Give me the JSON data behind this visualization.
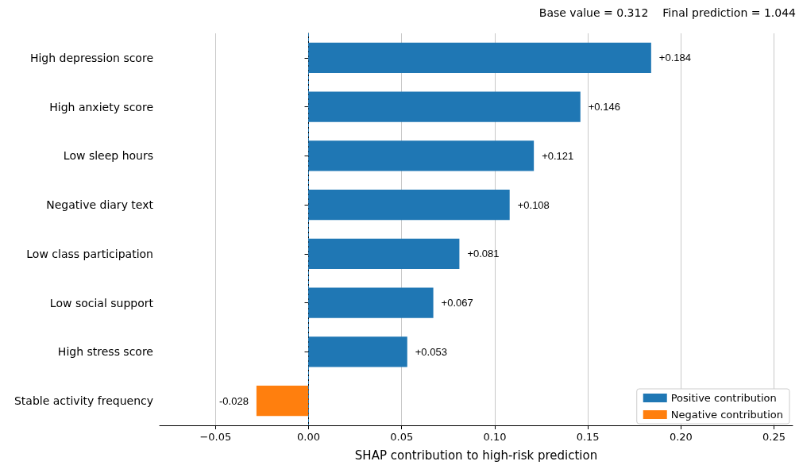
{
  "chart_data": {
    "type": "bar",
    "orientation": "horizontal",
    "stacked": true,
    "categories": [
      "High depression score",
      "High anxiety score",
      "Low sleep hours",
      "Negative diary text",
      "Low class participation",
      "Low social support",
      "High stress score",
      "Stable activity frequency"
    ],
    "series": [
      {
        "name": "Positive contribution",
        "color": "#1f77b4",
        "values": [
          0.184,
          0.146,
          0.121,
          0.108,
          0.081,
          0.067,
          0.053,
          null
        ],
        "value_labels": [
          "+0.184",
          "+0.146",
          "+0.121",
          "+0.108",
          "+0.081",
          "+0.067",
          "+0.053",
          null
        ]
      },
      {
        "name": "Negative contribution",
        "color": "#ff7f0e",
        "values": [
          null,
          null,
          null,
          null,
          null,
          null,
          null,
          -0.028
        ],
        "value_labels": [
          null,
          null,
          null,
          null,
          null,
          null,
          null,
          "-0.028"
        ]
      }
    ],
    "xlabel": "SHAP contribution to high-risk prediction",
    "xlim": [
      -0.08,
      0.26
    ],
    "xticks": [
      {
        "value": -0.05,
        "label": "−0.05"
      },
      {
        "value": 0,
        "label": "0.00"
      },
      {
        "value": 0.05,
        "label": "0.05"
      },
      {
        "value": 0.1,
        "label": "0.10"
      },
      {
        "value": 0.15,
        "label": "0.15"
      },
      {
        "value": 0.2,
        "label": "0.20"
      },
      {
        "value": 0.25,
        "label": "0.25"
      }
    ],
    "ref_lines": [
      {
        "axis": "x",
        "value": 0,
        "color": "#1f77b4",
        "line_style": "dashed"
      }
    ],
    "annotations": [
      "Base value = 0.312",
      "Final prediction = 1.044"
    ],
    "grid": "x",
    "legend": "bottom right"
  }
}
